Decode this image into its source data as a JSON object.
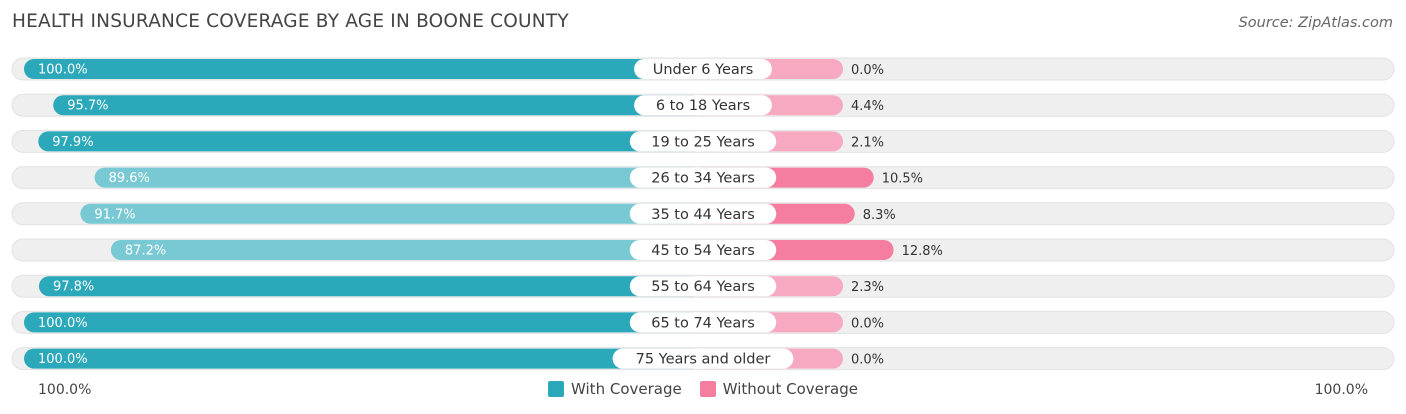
{
  "title": "HEALTH INSURANCE COVERAGE BY AGE IN BOONE COUNTY",
  "source": "Source: ZipAtlas.com",
  "axis": {
    "left_label": "100.0%",
    "right_label": "100.0%"
  },
  "legend": {
    "with": "With Coverage",
    "without": "Without Coverage"
  },
  "colors": {
    "with_strong": "#2ba9ba",
    "with_light": "#78c9d3",
    "without_strong": "#f47da0",
    "without_light": "#f7a9c1",
    "track": "#efefef"
  },
  "chart_data": {
    "type": "bar",
    "orientation": "horizontal-diverging",
    "title": "HEALTH INSURANCE COVERAGE BY AGE IN BOONE COUNTY",
    "categories": [
      "Under 6 Years",
      "6 to 18 Years",
      "19 to 25 Years",
      "26 to 34 Years",
      "35 to 44 Years",
      "45 to 54 Years",
      "55 to 64 Years",
      "65 to 74 Years",
      "75 Years and older"
    ],
    "series": [
      {
        "name": "With Coverage",
        "values": [
          100.0,
          95.7,
          97.9,
          89.6,
          91.7,
          87.2,
          97.8,
          100.0,
          100.0
        ],
        "labels": [
          "100.0%",
          "95.7%",
          "97.9%",
          "89.6%",
          "91.7%",
          "87.2%",
          "97.8%",
          "100.0%",
          "100.0%"
        ]
      },
      {
        "name": "Without Coverage",
        "values": [
          0.0,
          4.4,
          2.1,
          10.5,
          8.3,
          12.8,
          2.3,
          0.0,
          0.0
        ],
        "labels": [
          "0.0%",
          "4.4%",
          "2.1%",
          "10.5%",
          "8.3%",
          "12.8%",
          "2.3%",
          "0.0%",
          "0.0%"
        ]
      }
    ],
    "xlim": [
      0,
      100
    ],
    "legend_position": "bottom-center"
  }
}
